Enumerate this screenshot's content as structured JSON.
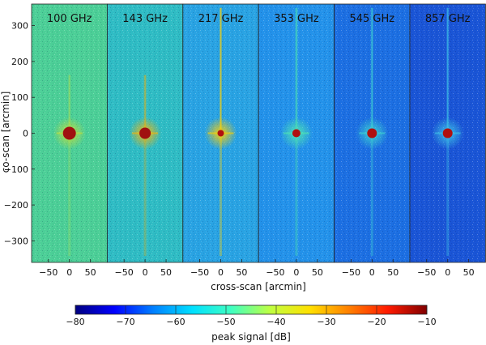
{
  "chart_data": {
    "type": "heatmap",
    "title": "",
    "xlabel": "cross-scan [arcmin]",
    "ylabel": "co-scan [arcmin]",
    "xlim": [
      -90,
      90
    ],
    "ylim": [
      -360,
      360
    ],
    "x_ticks": [
      "−50",
      "0",
      "50"
    ],
    "y_ticks": [
      {
        "v": 300,
        "label": "300"
      },
      {
        "v": 200,
        "label": "200"
      },
      {
        "v": 100,
        "label": "100"
      },
      {
        "v": 0,
        "label": "0"
      },
      {
        "v": -100,
        "label": "−100"
      },
      {
        "v": -200,
        "label": "−200"
      },
      {
        "v": -300,
        "label": "−300"
      }
    ],
    "panels": [
      {
        "label": "100 GHz",
        "bg": "#4ccf97",
        "halo": "#c6df3a",
        "core": "#a01010",
        "core_r": 8,
        "spike": 0.6
      },
      {
        "label": "143 GHz",
        "bg": "#2fbcc4",
        "halo": "#ffb400",
        "core": "#a01010",
        "core_r": 7,
        "spike": 0.8
      },
      {
        "label": "217 GHz",
        "bg": "#29a3e3",
        "halo": "#ffd000",
        "core": "#b01010",
        "core_r": 4,
        "spike": 1.0
      },
      {
        "label": "353 GHz",
        "bg": "#2392ea",
        "halo": "#50e8b0",
        "core": "#b01010",
        "core_r": 5,
        "spike": 1.0
      },
      {
        "label": "545 GHz",
        "bg": "#1c6fe2",
        "halo": "#40d8d0",
        "core": "#b01010",
        "core_r": 6,
        "spike": 1.0
      },
      {
        "label": "857 GHz",
        "bg": "#1a55d6",
        "halo": "#40c8e8",
        "core": "#b01010",
        "core_r": 6,
        "spike": 1.0
      }
    ],
    "colorbar": {
      "label": "peak signal [dB]",
      "range": [
        -80,
        -10
      ],
      "ticks": [
        {
          "v": -80,
          "label": "−80"
        },
        {
          "v": -70,
          "label": "−70"
        },
        {
          "v": -60,
          "label": "−60"
        },
        {
          "v": -50,
          "label": "−50"
        },
        {
          "v": -40,
          "label": "−40"
        },
        {
          "v": -30,
          "label": "−30"
        },
        {
          "v": -20,
          "label": "−20"
        },
        {
          "v": -10,
          "label": "−10"
        }
      ],
      "colors": [
        "#00007f",
        "#0000ff",
        "#0080ff",
        "#00e0ff",
        "#40ffc0",
        "#c0ff40",
        "#ffe000",
        "#ff8000",
        "#ff1a00",
        "#800000"
      ]
    }
  }
}
